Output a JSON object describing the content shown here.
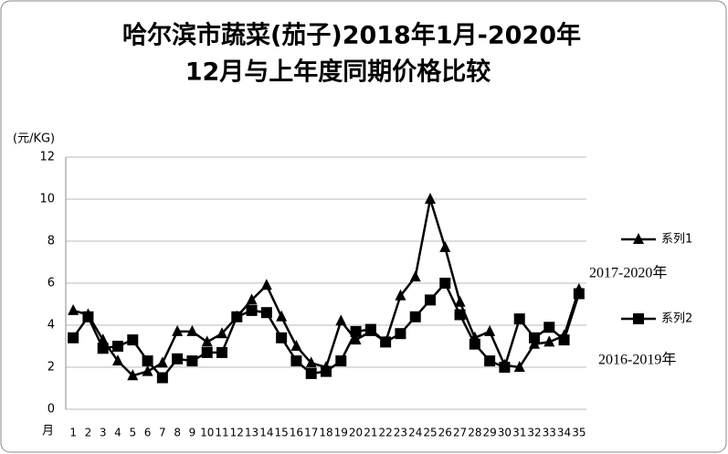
{
  "chart_data": {
    "type": "line",
    "title": [
      "哈尔滨市蔬菜(茄子)2018年1月-2020年",
      "12月与上年度同期价格比较"
    ],
    "y_label": "(元/KG)",
    "x_label": "月",
    "categories": [
      "1",
      "2",
      "3",
      "4",
      "5",
      "6",
      "7",
      "8",
      "9",
      "10",
      "11",
      "12",
      "13",
      "14",
      "15",
      "16",
      "17",
      "18",
      "19",
      "20",
      "21",
      "22",
      "23",
      "24",
      "25",
      "26",
      "27",
      "28",
      "29",
      "30",
      "31",
      "32",
      "33",
      "34",
      "35"
    ],
    "series": [
      {
        "name": "系列1",
        "color": "#000000",
        "marker": "triangle",
        "values": [
          4.7,
          4.5,
          3.3,
          2.3,
          1.6,
          1.8,
          2.2,
          3.7,
          3.7,
          3.2,
          3.6,
          4.4,
          5.2,
          5.9,
          4.4,
          3.0,
          2.2,
          2.0,
          4.2,
          3.3,
          3.7,
          3.2,
          5.4,
          6.3,
          10.0,
          7.7,
          5.1,
          3.4,
          3.7,
          2.1,
          2.0,
          3.1,
          3.2,
          3.5,
          5.7
        ]
      },
      {
        "name": "系列2",
        "color": "#000000",
        "marker": "square",
        "values": [
          3.4,
          4.4,
          2.9,
          3.0,
          3.3,
          2.3,
          1.5,
          2.4,
          2.3,
          2.7,
          2.7,
          4.4,
          4.7,
          4.6,
          3.4,
          2.3,
          1.7,
          1.8,
          2.3,
          3.7,
          3.8,
          3.2,
          3.6,
          4.4,
          5.2,
          6.0,
          4.5,
          3.1,
          2.3,
          2.0,
          4.3,
          3.4,
          3.9,
          3.3,
          5.5
        ]
      }
    ],
    "annotations": [
      "2017-2020年",
      "2016-2019年"
    ],
    "ylim": [
      0,
      12
    ],
    "yticks": [
      0,
      2,
      4,
      6,
      8,
      10,
      12
    ],
    "grid": true,
    "legend": "right"
  }
}
